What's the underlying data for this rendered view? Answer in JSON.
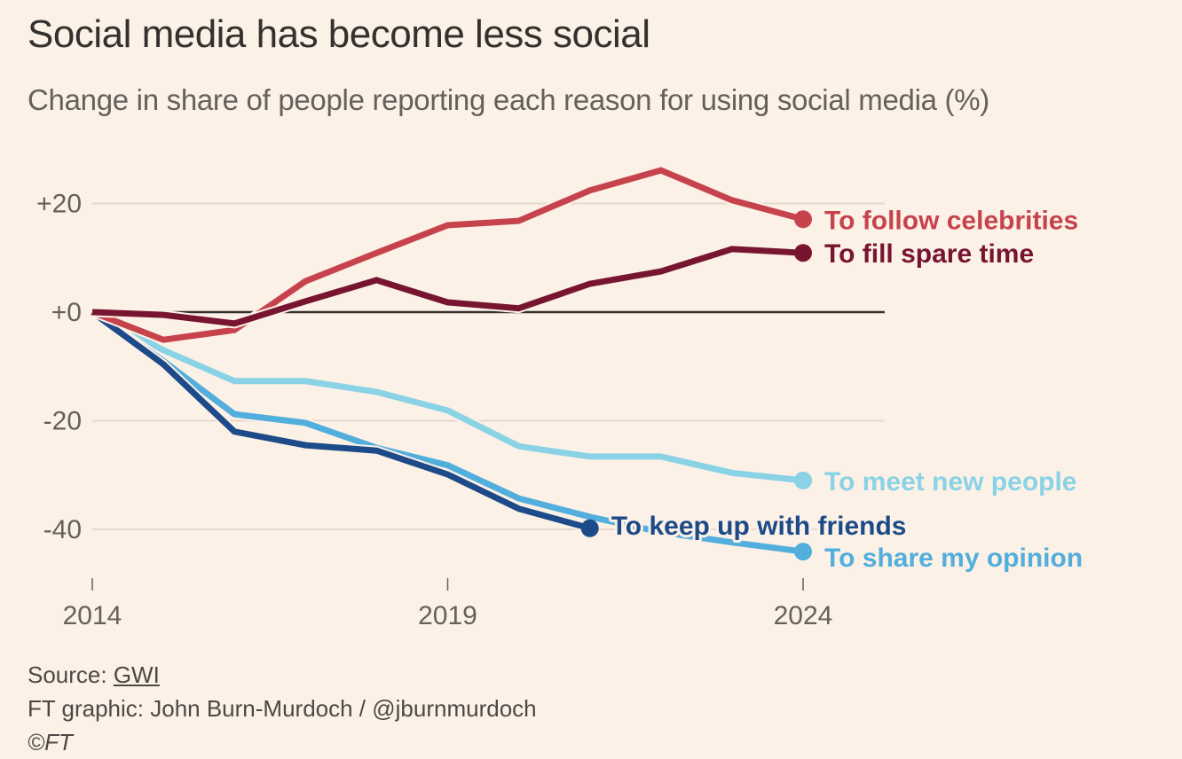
{
  "header": {
    "title": "Social media has become less social",
    "subtitle": "Change in share of people reporting each reason for using social media (%)"
  },
  "footer": {
    "source_prefix": "Source: ",
    "source_link": "GWI",
    "credit": "FT graphic: John Burn-Murdoch / @jburnmurdoch",
    "copyright": "©FT"
  },
  "chart_data": {
    "type": "line",
    "title": "Social media has become less social",
    "subtitle": "Change in share of people reporting each reason for using social media (%)",
    "xlabel": "",
    "ylabel": "",
    "x": [
      2014,
      2015,
      2016,
      2017,
      2018,
      2019,
      2020,
      2021,
      2022,
      2023,
      2024
    ],
    "xlim": [
      2014,
      2025.1
    ],
    "ylim": [
      -48,
      30
    ],
    "x_ticks": [
      2014,
      2019,
      2024
    ],
    "x_tick_labels": [
      "2014",
      "2019",
      "2024"
    ],
    "y_ticks": [
      20,
      0,
      -20,
      -40
    ],
    "y_tick_labels": [
      "+20",
      "+0",
      "-20",
      "-40"
    ],
    "grid": true,
    "legend": "direct-labels-right",
    "series": [
      {
        "name": "To follow celebrities",
        "color": "#c6434d",
        "values": [
          0,
          -5.1,
          -3.3,
          5.7,
          10.9,
          16.0,
          16.8,
          22.4,
          26.1,
          20.6,
          17.1
        ]
      },
      {
        "name": "To fill spare time",
        "color": "#771531",
        "values": [
          0,
          -0.5,
          -2.1,
          2.0,
          5.9,
          1.8,
          0.7,
          5.2,
          7.5,
          11.6,
          10.9
        ]
      },
      {
        "name": "To meet new people",
        "color": "#8ad2e6",
        "values": [
          0,
          -7.0,
          -12.7,
          -12.7,
          -14.7,
          -18.1,
          -24.7,
          -26.6,
          -26.6,
          -29.6,
          -31.0
        ]
      },
      {
        "name": "To share my opinion",
        "color": "#52aedd",
        "values": [
          0,
          -9.0,
          -18.8,
          -20.4,
          -25.0,
          -28.2,
          -34.3,
          -37.7,
          -40.5,
          -42.4,
          -44.1
        ]
      },
      {
        "name": "To keep up with friends",
        "color": "#1d4a88",
        "values": [
          0,
          -9.6,
          -22.0,
          -24.5,
          -25.5,
          -29.9,
          -36.2,
          -39.8,
          null,
          null,
          null
        ]
      }
    ]
  }
}
